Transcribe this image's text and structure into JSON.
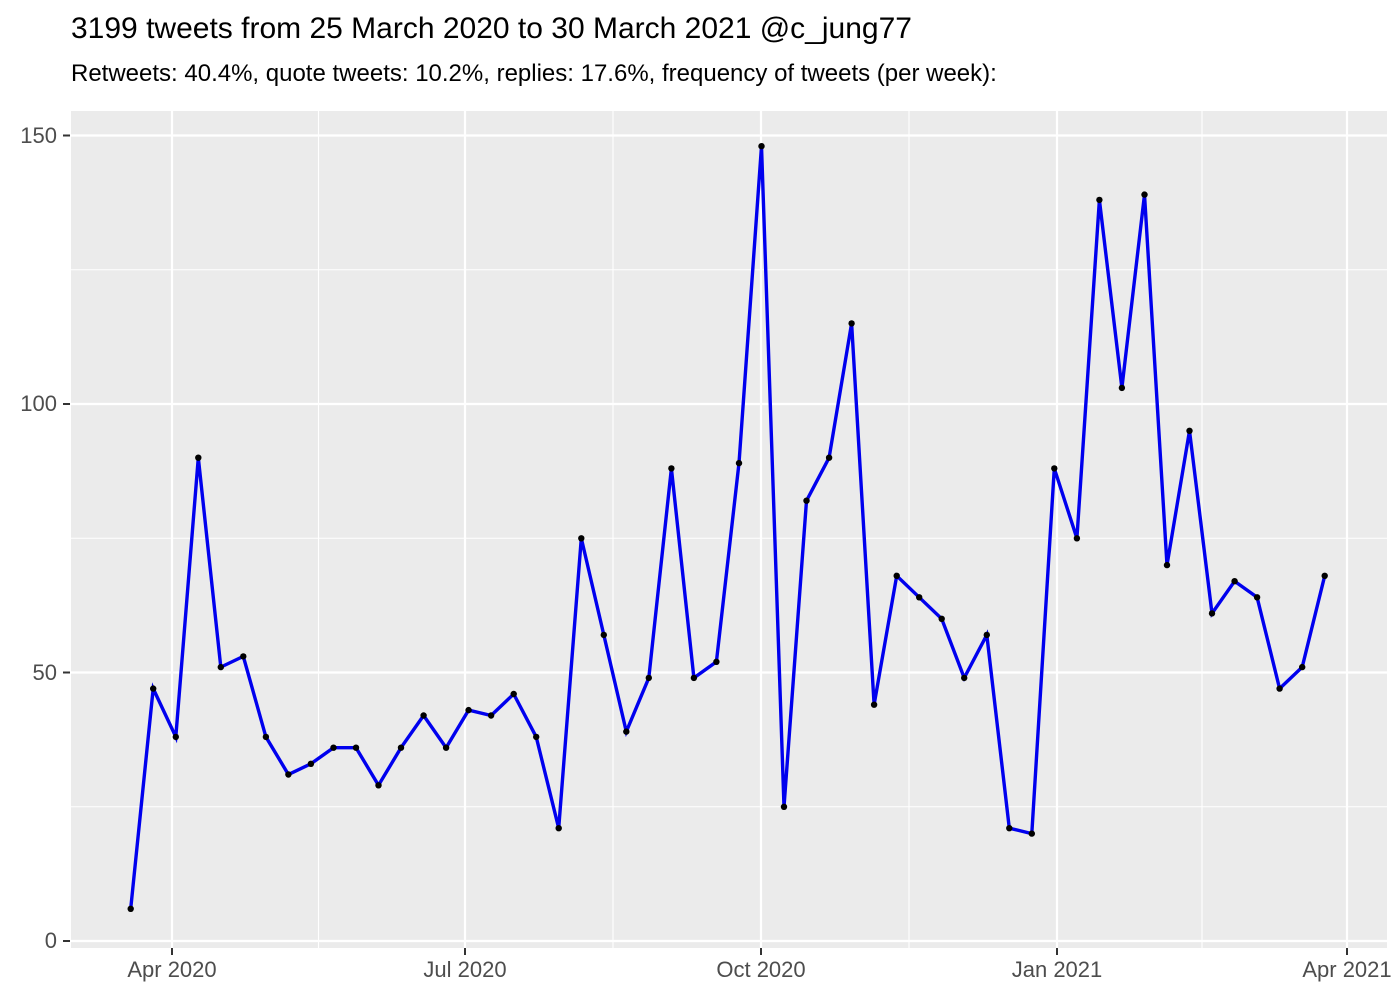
{
  "header": {
    "title": "3199 tweets from 25 March 2020 to 30 March 2021 @c_jung77",
    "subtitle": "Retweets: 40.4%, quote tweets: 10.2%, replies: 17.6%, frequency of tweets (per week):"
  },
  "chart_data": {
    "type": "line",
    "title": "3199 tweets from 25 March 2020 to 30 March 2021 @c_jung77",
    "subtitle": "Retweets: 40.4%, quote tweets: 10.2%, replies: 17.6%, frequency of tweets (per week):",
    "xlabel": "",
    "ylabel": "",
    "x_tick_labels": [
      "Apr 2020",
      "Jul 2020",
      "Oct 2020",
      "Jan 2021",
      "Apr 2021"
    ],
    "y_ticks": [
      0,
      50,
      100,
      150
    ],
    "y_minor_gridlines": [
      25,
      75,
      125
    ],
    "ylim": [
      -1.5,
      155
    ],
    "x_range_note": "weekly points from late March 2020 through late March 2021",
    "grid": "white major and minor gridlines on gray panel",
    "legend": "none",
    "series": [
      {
        "name": "tweets per week",
        "cadence": "weekly",
        "values": [
          6,
          47,
          38,
          90,
          51,
          53,
          38,
          31,
          33,
          36,
          36,
          29,
          36,
          42,
          36,
          43,
          42,
          46,
          38,
          21,
          75,
          57,
          39,
          49,
          88,
          49,
          52,
          89,
          148,
          25,
          82,
          90,
          115,
          44,
          68,
          64,
          60,
          49,
          57,
          21,
          20,
          88,
          75,
          138,
          103,
          139,
          70,
          95,
          61,
          67,
          64,
          47,
          51,
          68
        ]
      }
    ]
  },
  "colors": {
    "background": "#FFFFFF",
    "panel": "#EBEBEB",
    "grid": "#FFFFFF",
    "line": "#0000EE",
    "point": "#000000",
    "axis_text": "#4D4D4D",
    "tick_mark": "#333333",
    "title_text": "#000000"
  }
}
